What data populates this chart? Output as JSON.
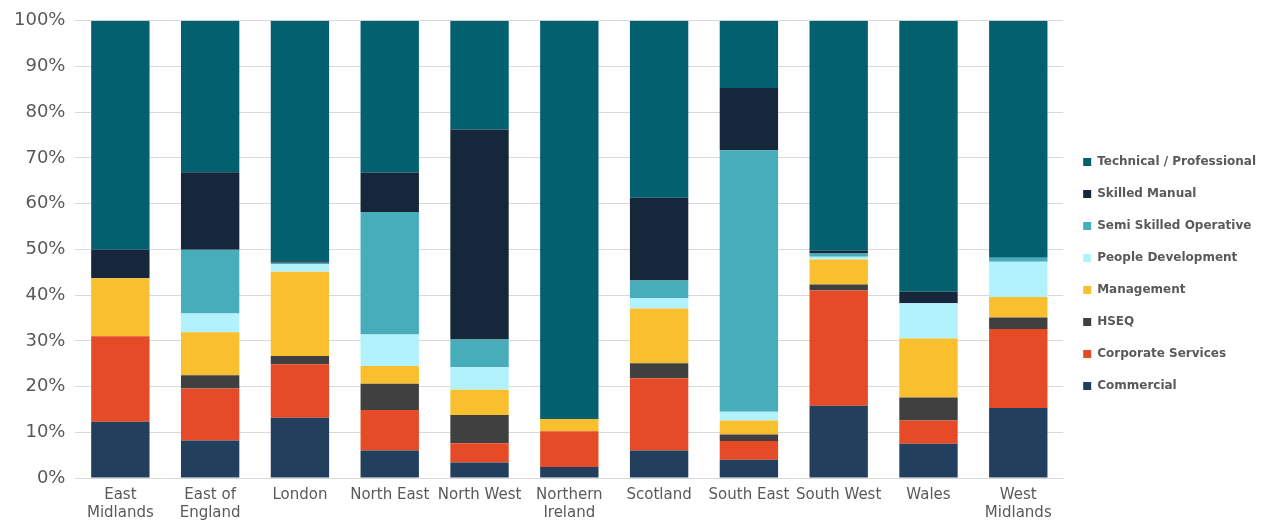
{
  "chart_data": {
    "type": "bar",
    "stacked": true,
    "categories": [
      "East Midlands",
      "East of England",
      "London",
      "North East",
      "North West",
      "Northern Ireland",
      "Scotland",
      "South East",
      "South West",
      "Wales",
      "West Midlands"
    ],
    "series": [
      {
        "name": "Commercial",
        "color": "#233f5e",
        "values": [
          12.3,
          8.2,
          13.2,
          6.0,
          3.4,
          2.4,
          6.0,
          4.0,
          15.8,
          7.5,
          15.3
        ]
      },
      {
        "name": "Corporate Services",
        "color": "#e54b26",
        "values": [
          18.7,
          11.4,
          11.7,
          8.9,
          4.2,
          7.8,
          15.8,
          4.1,
          25.2,
          5.1,
          17.3
        ]
      },
      {
        "name": "HSEQ",
        "color": "#404040",
        "values": [
          0,
          2.9,
          1.8,
          5.7,
          6.2,
          0,
          3.3,
          1.4,
          1.3,
          5.0,
          2.5
        ]
      },
      {
        "name": "Management",
        "color": "#f9bf2f",
        "values": [
          12.7,
          9.4,
          18.4,
          3.9,
          5.5,
          2.7,
          12.0,
          3.1,
          5.5,
          12.9,
          4.5
        ]
      },
      {
        "name": "People Development",
        "color": "#b2f2fc",
        "values": [
          0,
          4.1,
          1.7,
          6.9,
          4.9,
          0,
          2.2,
          1.9,
          0.6,
          7.7,
          7.7
        ]
      },
      {
        "name": "Semi Skilled Operative",
        "color": "#47adbb",
        "values": [
          0,
          13.9,
          0.3,
          26.8,
          6.1,
          0,
          3.9,
          57.2,
          0.7,
          0,
          0.9
        ]
      },
      {
        "name": "Skilled Manual",
        "color": "#16263b",
        "values": [
          6.2,
          17.0,
          0.3,
          8.6,
          45.9,
          0,
          18.1,
          13.6,
          0.6,
          2.6,
          0
        ]
      },
      {
        "name": "Technical / Professional",
        "color": "#03606e",
        "values": [
          50.1,
          33.1,
          52.6,
          33.2,
          23.8,
          87.1,
          38.7,
          14.7,
          50.3,
          59.2,
          51.8
        ]
      }
    ],
    "ylim": [
      0,
      100
    ],
    "yticks": [
      {
        "value": 0,
        "label": "0%"
      },
      {
        "value": 10,
        "label": "10%"
      },
      {
        "value": 20,
        "label": "20%"
      },
      {
        "value": 30,
        "label": "30%"
      },
      {
        "value": 40,
        "label": "40%"
      },
      {
        "value": 50,
        "label": "50%"
      },
      {
        "value": 60,
        "label": "60%"
      },
      {
        "value": 70,
        "label": "70%"
      },
      {
        "value": 80,
        "label": "80%"
      },
      {
        "value": 90,
        "label": "90%"
      },
      {
        "value": 100,
        "label": "100%"
      }
    ],
    "grid": "y",
    "legend": "right"
  }
}
